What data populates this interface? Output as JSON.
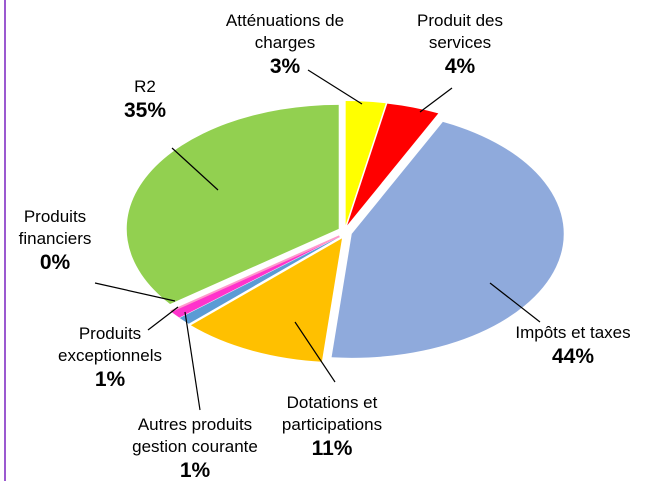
{
  "chart_data": {
    "type": "pie",
    "categories": [
      "Atténuations de charges",
      "Produit des services",
      "Impôts et taxes",
      "Dotations et participations",
      "Autres produits gestion courante",
      "Produits exceptionnels",
      "Produits financiers",
      "R2"
    ],
    "values": [
      3,
      4,
      44,
      11,
      1,
      1,
      0,
      35
    ],
    "value_labels": [
      "3%",
      "4%",
      "44%",
      "11%",
      "1%",
      "1%",
      "0%",
      "35%"
    ],
    "colors": [
      "#ffff00",
      "#ff0000",
      "#8faadc",
      "#ffc000",
      "#5b9bd5",
      "#ff33cc",
      "#ff99cc",
      "#92d050"
    ]
  }
}
